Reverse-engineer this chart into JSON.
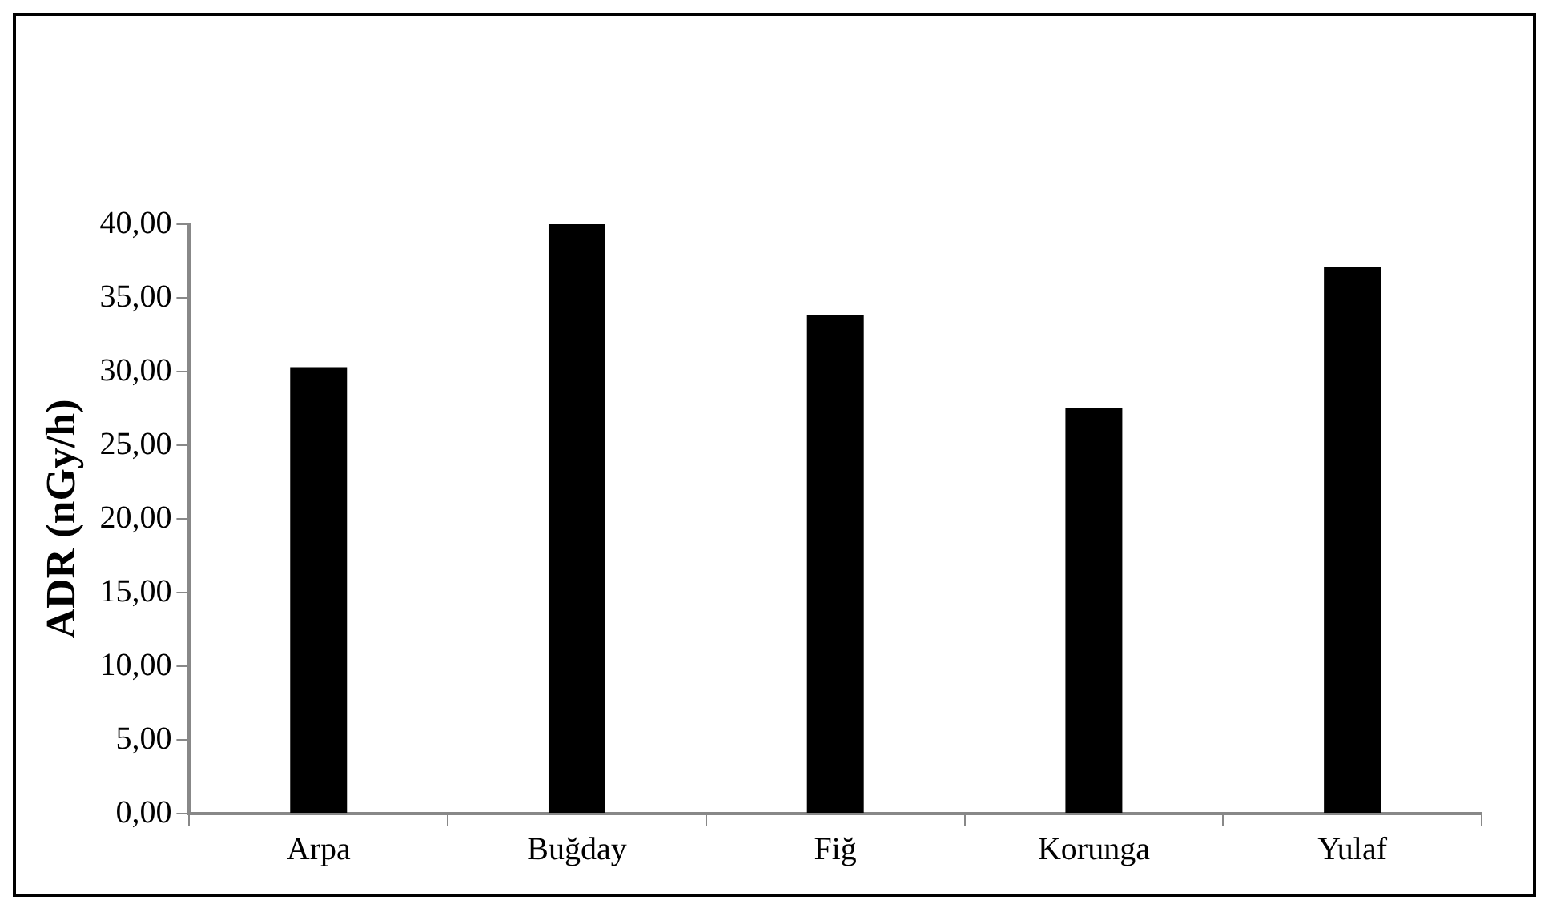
{
  "chart_data": {
    "type": "bar",
    "ylabel": "ADR (nGy/h)",
    "categories": [
      "Arpa",
      "Buğday",
      "Fiğ",
      "Korunga",
      "Yulaf"
    ],
    "values": [
      30.3,
      40.0,
      33.8,
      27.5,
      37.1
    ],
    "color": "#000000",
    "ylim": [
      0,
      40
    ],
    "yticks": [
      {
        "value": 0,
        "label": "0,00"
      },
      {
        "value": 5,
        "label": "5,00"
      },
      {
        "value": 10,
        "label": "10,00"
      },
      {
        "value": 15,
        "label": "15,00"
      },
      {
        "value": 20,
        "label": "20,00"
      },
      {
        "value": 25,
        "label": "25,00"
      },
      {
        "value": 30,
        "label": "30,00"
      },
      {
        "value": 35,
        "label": "35,00"
      },
      {
        "value": 40,
        "label": "40,00"
      }
    ],
    "grid": false,
    "legend": false
  }
}
